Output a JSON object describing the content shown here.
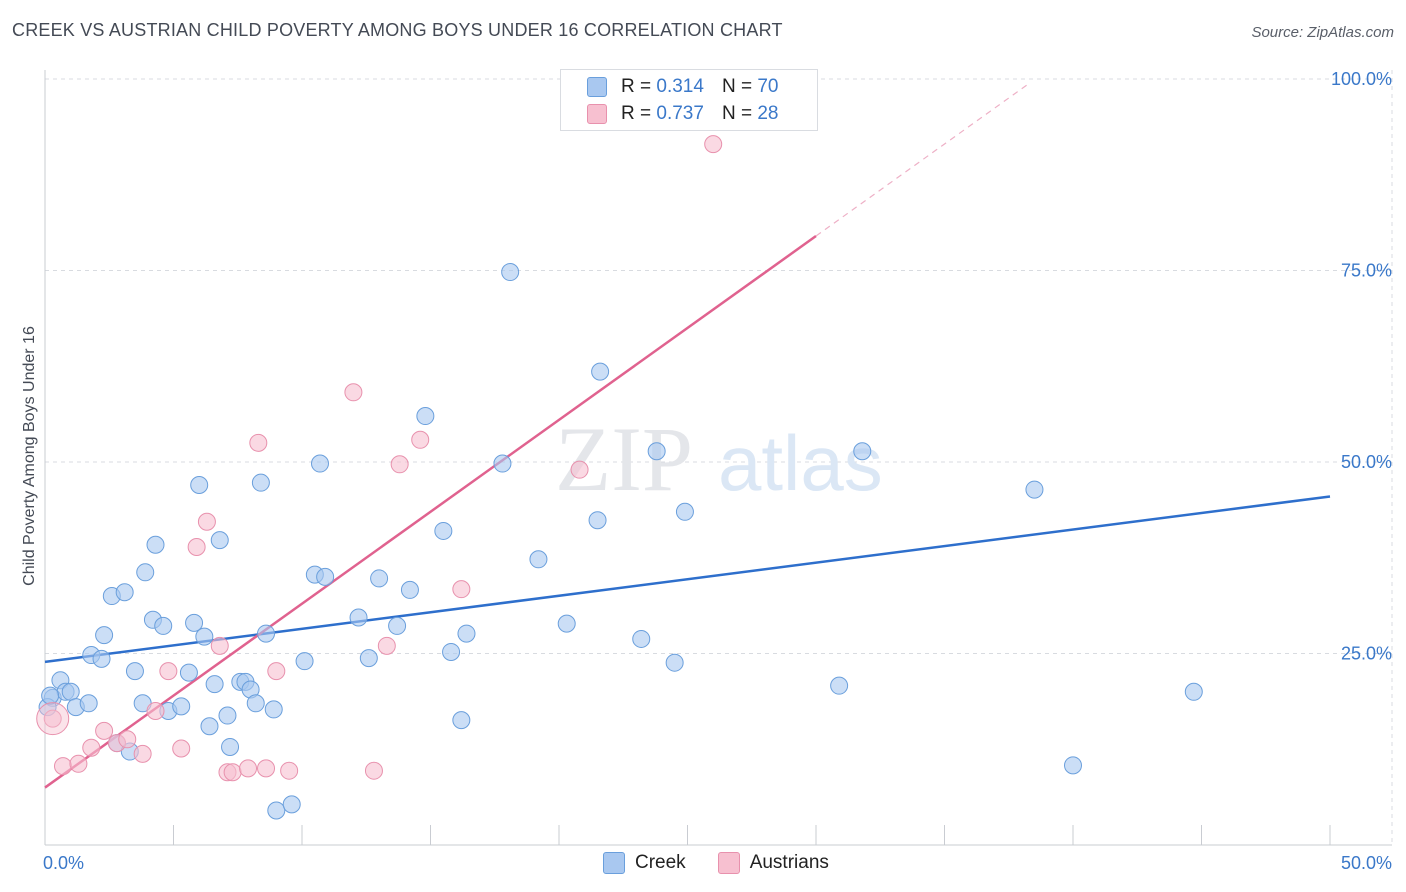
{
  "title": "CREEK VS AUSTRIAN CHILD POVERTY AMONG BOYS UNDER 16 CORRELATION CHART",
  "source": "Source: ZipAtlas.com",
  "watermark": {
    "zip": "ZIP",
    "atlas": "atlas"
  },
  "legend": {
    "rows": [
      {
        "r_label": "R =",
        "r_value": "0.314",
        "n_label": "N =",
        "n_value": "70"
      },
      {
        "r_label": "R =",
        "r_value": "0.737",
        "n_label": "N =",
        "n_value": "28"
      }
    ]
  },
  "bottom_legend": [
    "Creek",
    "Austrians"
  ],
  "colors": {
    "creek_fill": "#a9c8f0",
    "creek_stroke": "#6a9fdc",
    "creek_line": "#2e6fcc",
    "austrians_fill": "#f7c0d0",
    "austrians_stroke": "#e891ad",
    "austrians_line": "#e0628f",
    "tick_text": "#3a78c9",
    "grid": "#d8dbe0"
  },
  "chart_data": {
    "type": "scatter",
    "title": "CREEK VS AUSTRIAN CHILD POVERTY AMONG BOYS UNDER 16 CORRELATION CHART",
    "xlabel": "",
    "ylabel": "Child Poverty Among Boys Under 16",
    "xlim": [
      0,
      50
    ],
    "ylim": [
      0,
      102
    ],
    "x_ticks": [
      "0.0%",
      "50.0%"
    ],
    "y_ticks": [
      {
        "value": 25,
        "label": "25.0%"
      },
      {
        "value": 50,
        "label": "50.0%"
      },
      {
        "value": 75,
        "label": "75.0%"
      },
      {
        "value": 100,
        "label": "100.0%"
      }
    ],
    "grid": true,
    "legend_position": "top-center",
    "series": [
      {
        "name": "Creek",
        "r": 0.314,
        "n": 70,
        "trend": {
          "x": [
            0,
            50
          ],
          "y": [
            23.9,
            45.5
          ],
          "dashed_extension": false
        },
        "points": [
          [
            0.3,
            19.2
          ],
          [
            0.6,
            21.5
          ],
          [
            0.8,
            20.0
          ],
          [
            1.0,
            20.0
          ],
          [
            1.2,
            18.0
          ],
          [
            1.7,
            18.5
          ],
          [
            1.8,
            24.8
          ],
          [
            2.2,
            24.3
          ],
          [
            2.3,
            27.4
          ],
          [
            2.6,
            32.5
          ],
          [
            2.8,
            13.3
          ],
          [
            3.1,
            33.0
          ],
          [
            3.3,
            12.2
          ],
          [
            3.5,
            22.7
          ],
          [
            3.8,
            18.5
          ],
          [
            3.9,
            35.6
          ],
          [
            4.2,
            29.4
          ],
          [
            4.3,
            39.2
          ],
          [
            4.6,
            28.6
          ],
          [
            4.8,
            17.5
          ],
          [
            5.3,
            18.1
          ],
          [
            5.6,
            22.5
          ],
          [
            5.8,
            29.0
          ],
          [
            6.0,
            47.0
          ],
          [
            6.2,
            27.2
          ],
          [
            6.4,
            15.5
          ],
          [
            6.6,
            21.0
          ],
          [
            6.8,
            39.8
          ],
          [
            7.1,
            16.9
          ],
          [
            7.2,
            12.8
          ],
          [
            7.6,
            21.3
          ],
          [
            7.8,
            21.3
          ],
          [
            8.0,
            20.3
          ],
          [
            8.2,
            18.5
          ],
          [
            8.4,
            47.3
          ],
          [
            8.6,
            27.6
          ],
          [
            8.9,
            17.7
          ],
          [
            9.0,
            4.5
          ],
          [
            9.6,
            5.3
          ],
          [
            10.1,
            24.0
          ],
          [
            10.5,
            35.3
          ],
          [
            10.7,
            49.8
          ],
          [
            10.9,
            35.0
          ],
          [
            12.2,
            29.7
          ],
          [
            12.6,
            24.4
          ],
          [
            13.0,
            34.8
          ],
          [
            13.7,
            28.6
          ],
          [
            14.2,
            33.3
          ],
          [
            14.8,
            56.0
          ],
          [
            15.5,
            41.0
          ],
          [
            15.8,
            25.2
          ],
          [
            16.2,
            16.3
          ],
          [
            16.4,
            27.6
          ],
          [
            17.8,
            49.8
          ],
          [
            18.1,
            74.8
          ],
          [
            19.2,
            37.3
          ],
          [
            20.3,
            28.9
          ],
          [
            21.5,
            42.4
          ],
          [
            21.6,
            61.8
          ],
          [
            23.2,
            26.9
          ],
          [
            23.8,
            51.4
          ],
          [
            24.5,
            23.8
          ],
          [
            24.9,
            43.5
          ],
          [
            30.9,
            20.8
          ],
          [
            31.8,
            51.4
          ],
          [
            38.5,
            46.4
          ],
          [
            40.0,
            10.4
          ],
          [
            44.7,
            20.0
          ],
          [
            0.1,
            18.0
          ],
          [
            0.2,
            19.5
          ]
        ]
      },
      {
        "name": "Austrians",
        "r": 0.737,
        "n": 28,
        "trend": {
          "x": [
            0,
            30
          ],
          "y": [
            7.5,
            79.5
          ],
          "dashed_extension": true,
          "dashed_to": [
            38.2,
            99.2
          ]
        },
        "points": [
          [
            0.3,
            16.5
          ],
          [
            0.7,
            10.3
          ],
          [
            1.3,
            10.6
          ],
          [
            1.8,
            12.7
          ],
          [
            2.3,
            14.9
          ],
          [
            2.8,
            13.3
          ],
          [
            3.2,
            13.8
          ],
          [
            3.8,
            11.9
          ],
          [
            4.3,
            17.5
          ],
          [
            4.8,
            22.7
          ],
          [
            5.3,
            12.6
          ],
          [
            5.9,
            38.9
          ],
          [
            6.3,
            42.2
          ],
          [
            6.8,
            26.0
          ],
          [
            7.1,
            9.5
          ],
          [
            7.3,
            9.5
          ],
          [
            7.9,
            10.0
          ],
          [
            8.3,
            52.5
          ],
          [
            8.6,
            10.0
          ],
          [
            9.0,
            22.7
          ],
          [
            9.5,
            9.7
          ],
          [
            12.0,
            59.1
          ],
          [
            12.8,
            9.7
          ],
          [
            13.3,
            26.0
          ],
          [
            13.8,
            49.7
          ],
          [
            14.6,
            52.9
          ],
          [
            16.2,
            33.4
          ],
          [
            20.8,
            49.0
          ],
          [
            26.0,
            91.5
          ]
        ]
      }
    ]
  }
}
